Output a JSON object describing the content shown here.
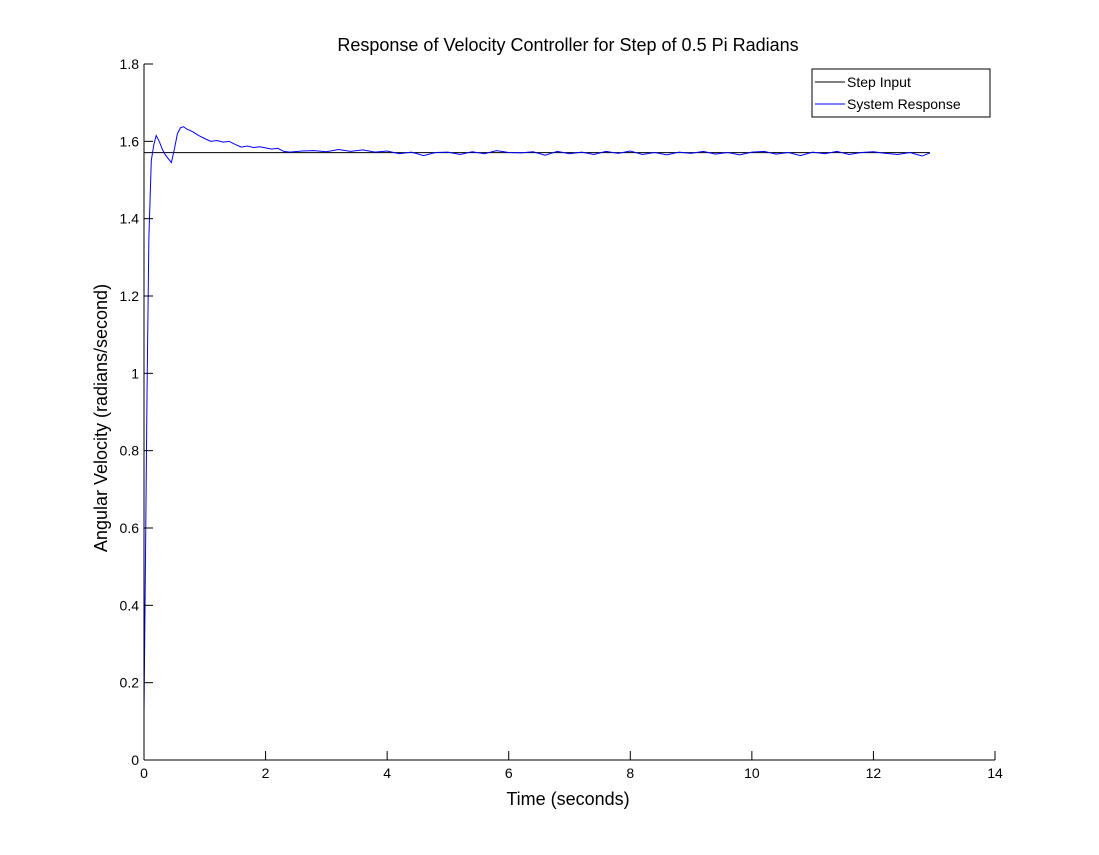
{
  "chart_data": {
    "type": "line",
    "title": "Response of Velocity Controller for Step of 0.5 Pi Radians",
    "xlabel": "Time (seconds)",
    "ylabel": "Angular Velocity (radians/second)",
    "xlim": [
      0,
      14
    ],
    "ylim": [
      0,
      1.8
    ],
    "xticks": [
      0,
      2,
      4,
      6,
      8,
      10,
      12,
      14
    ],
    "yticks": [
      0,
      0.2,
      0.4,
      0.6,
      0.8,
      1,
      1.2,
      1.4,
      1.6,
      1.8
    ],
    "grid": false,
    "legend_position": "top-right",
    "colors": {
      "step": "#000000",
      "response": "#0000ff"
    },
    "series": [
      {
        "name": "Step Input",
        "x": [
          0,
          12.93
        ],
        "y": [
          1.5708,
          1.5708
        ]
      },
      {
        "name": "System Response",
        "x": [
          0,
          0.02,
          0.05,
          0.08,
          0.12,
          0.16,
          0.2,
          0.25,
          0.3,
          0.35,
          0.4,
          0.45,
          0.5,
          0.55,
          0.6,
          0.65,
          0.7,
          0.8,
          0.9,
          1.0,
          1.1,
          1.2,
          1.3,
          1.4,
          1.5,
          1.6,
          1.7,
          1.8,
          1.9,
          2.0,
          2.1,
          2.2,
          2.3,
          2.4,
          2.6,
          2.8,
          3.0,
          3.2,
          3.4,
          3.6,
          3.8,
          4.0,
          4.2,
          4.4,
          4.6,
          4.8,
          5.0,
          5.2,
          5.4,
          5.6,
          5.8,
          6.0,
          6.2,
          6.4,
          6.6,
          6.8,
          7.0,
          7.2,
          7.4,
          7.6,
          7.8,
          8.0,
          8.2,
          8.4,
          8.6,
          8.8,
          9.0,
          9.2,
          9.4,
          9.6,
          9.8,
          10.0,
          10.2,
          10.4,
          10.6,
          10.8,
          11.0,
          11.2,
          11.4,
          11.6,
          11.8,
          12.0,
          12.2,
          12.4,
          12.6,
          12.8,
          12.93
        ],
        "y": [
          0.12,
          0.45,
          0.95,
          1.35,
          1.55,
          1.59,
          1.615,
          1.6,
          1.58,
          1.565,
          1.555,
          1.545,
          1.58,
          1.62,
          1.635,
          1.638,
          1.632,
          1.625,
          1.615,
          1.607,
          1.6,
          1.602,
          1.598,
          1.6,
          1.592,
          1.585,
          1.588,
          1.584,
          1.586,
          1.583,
          1.58,
          1.582,
          1.574,
          1.572,
          1.575,
          1.576,
          1.573,
          1.579,
          1.574,
          1.578,
          1.572,
          1.575,
          1.568,
          1.572,
          1.563,
          1.571,
          1.572,
          1.566,
          1.573,
          1.568,
          1.576,
          1.571,
          1.57,
          1.573,
          1.564,
          1.574,
          1.568,
          1.572,
          1.566,
          1.574,
          1.569,
          1.575,
          1.566,
          1.571,
          1.565,
          1.572,
          1.569,
          1.574,
          1.567,
          1.571,
          1.565,
          1.572,
          1.574,
          1.567,
          1.571,
          1.563,
          1.572,
          1.568,
          1.574,
          1.566,
          1.571,
          1.573,
          1.569,
          1.566,
          1.571,
          1.562,
          1.57
        ]
      }
    ]
  }
}
